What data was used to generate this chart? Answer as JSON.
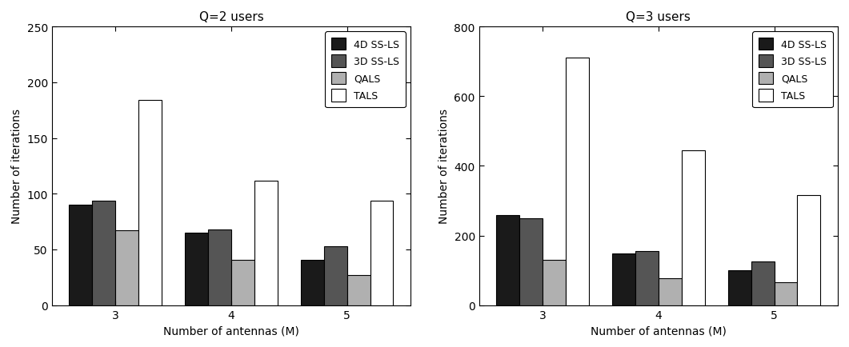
{
  "left_title": "Q=2 users",
  "right_title": "Q=3 users",
  "xlabel": "Number of antennas (M)",
  "ylabel": "Number of iterations",
  "categories": [
    "3",
    "4",
    "5"
  ],
  "legend_labels": [
    "4D SS-LS",
    "3D SS-LS",
    "QALS",
    "TALS"
  ],
  "bar_colors": [
    "#1a1a1a",
    "#555555",
    "#b0b0b0",
    "#ffffff"
  ],
  "bar_edgecolors": [
    "#000000",
    "#000000",
    "#000000",
    "#000000"
  ],
  "left_data": {
    "4D SS-LS": [
      90,
      65,
      41
    ],
    "3D SS-LS": [
      94,
      68,
      53
    ],
    "QALS": [
      67,
      41,
      27
    ],
    "TALS": [
      184,
      112,
      94
    ]
  },
  "right_data": {
    "4D SS-LS": [
      258,
      148,
      100
    ],
    "3D SS-LS": [
      250,
      155,
      125
    ],
    "QALS": [
      130,
      78,
      65
    ],
    "TALS": [
      710,
      445,
      315
    ]
  },
  "left_ylim": [
    0,
    250
  ],
  "right_ylim": [
    0,
    800
  ],
  "left_yticks": [
    0,
    50,
    100,
    150,
    200,
    250
  ],
  "right_yticks": [
    0,
    200,
    400,
    600,
    800
  ],
  "figsize": [
    10.61,
    4.35
  ],
  "dpi": 100
}
